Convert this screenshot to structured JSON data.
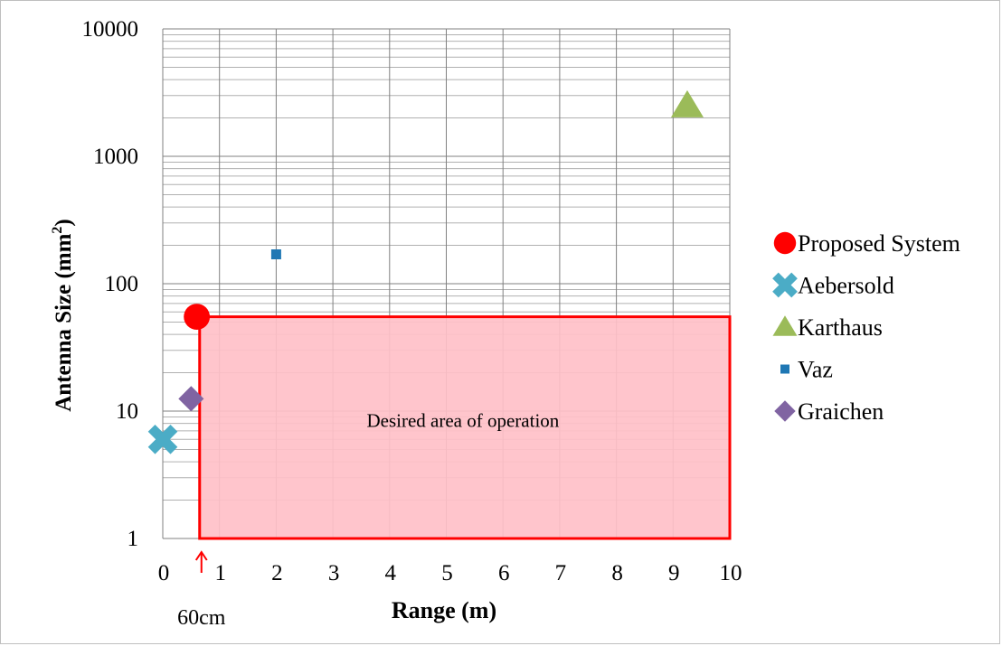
{
  "chart_data": {
    "type": "scatter",
    "xlabel": "Range (m)",
    "ylabel_main": "Antenna Size (mm",
    "ylabel_sup": "2",
    "ylabel_close": ")",
    "xlim": [
      0,
      10
    ],
    "ylim": [
      1,
      10000
    ],
    "y_scale": "log",
    "grid": true,
    "legend_position": "right",
    "x_ticks": [
      "0",
      "1",
      "2",
      "3",
      "4",
      "5",
      "6",
      "7",
      "8",
      "9",
      "10"
    ],
    "y_ticks": [
      "1",
      "10",
      "100",
      "1000",
      "10000"
    ],
    "series": [
      {
        "name": "Proposed System",
        "marker": "circle",
        "color": "#ff0000",
        "x": 0.6,
        "y": 55
      },
      {
        "name": "Aebersold",
        "marker": "x",
        "color": "#4bacc6",
        "x": 0.0,
        "y": 6
      },
      {
        "name": "Karthaus",
        "marker": "triangle",
        "color": "#9bbb59",
        "x": 9.25,
        "y": 2500
      },
      {
        "name": "Vaz",
        "marker": "square",
        "color": "#1f77b4",
        "x": 2.0,
        "y": 170
      },
      {
        "name": "Graichen",
        "marker": "diamond",
        "color": "#8064a2",
        "x": 0.5,
        "y": 12.5
      }
    ],
    "region": {
      "label": "Desired area of operation",
      "x_from": 0.65,
      "x_to": 10,
      "y_from": 1,
      "y_to": 55,
      "fill": "#ffc0c8",
      "stroke": "#ff0000"
    },
    "annotation": {
      "label": "60cm",
      "x": 0.65,
      "color": "#ff0000"
    }
  }
}
